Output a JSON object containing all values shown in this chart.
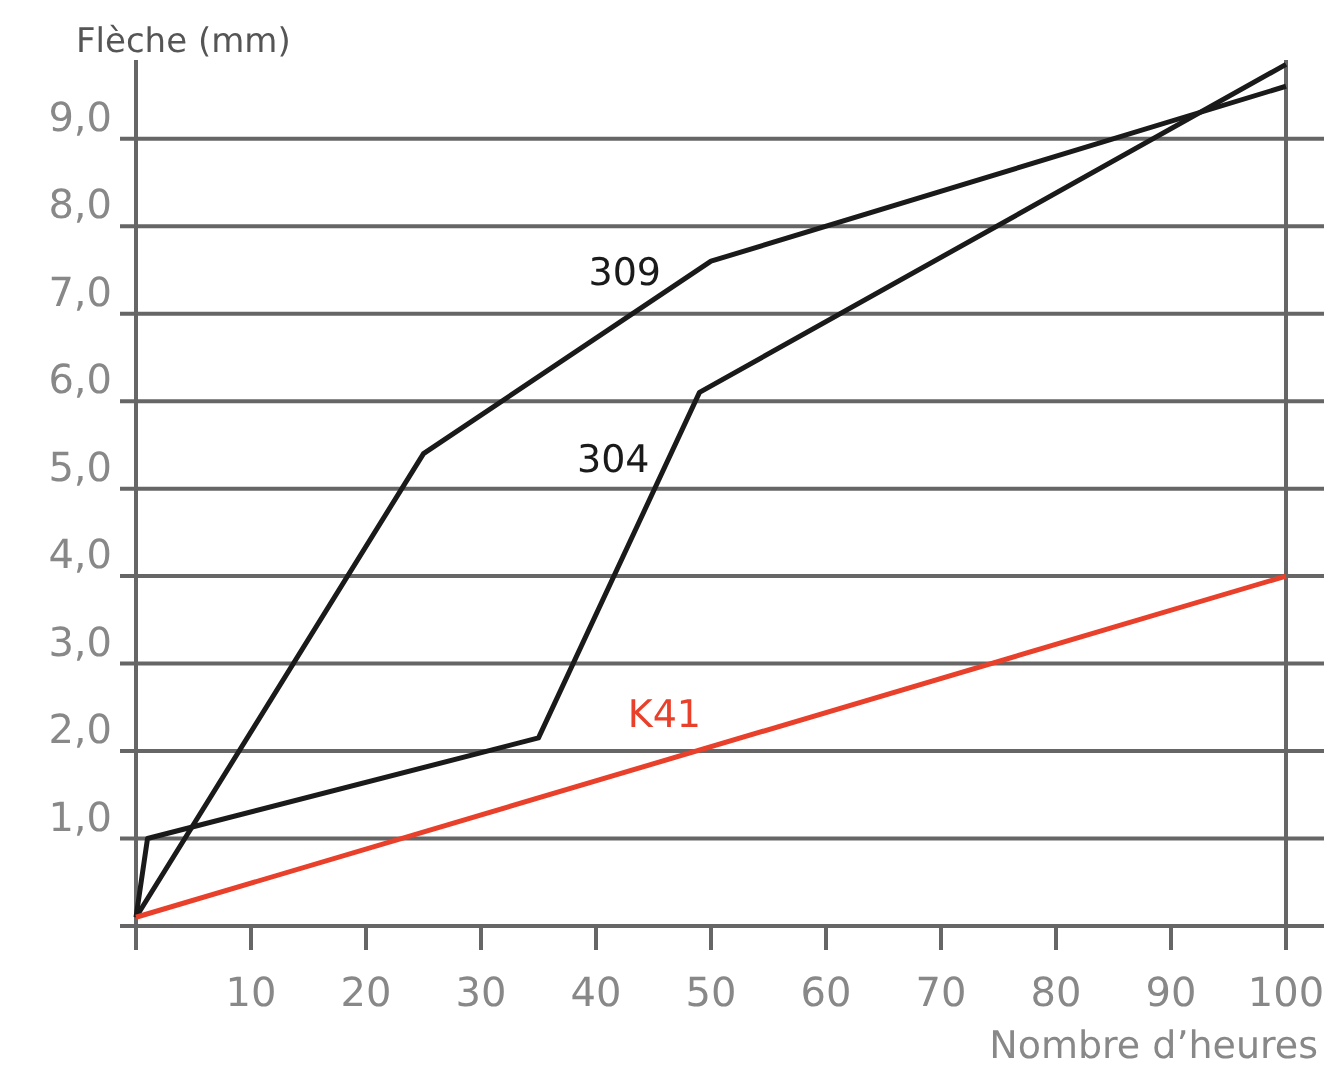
{
  "chart_data": {
    "type": "line",
    "ylabel": "Flèche (mm)",
    "xlabel": "Nombre d’heures",
    "xlim": [
      0,
      100
    ],
    "ylim": [
      0,
      9.9
    ],
    "xticks": [
      {
        "value": 0,
        "label": null
      },
      10,
      20,
      30,
      40,
      50,
      60,
      70,
      80,
      90,
      100
    ],
    "yticks": [
      {
        "value": 1,
        "label": "1,0"
      },
      {
        "value": 2,
        "label": "2,0"
      },
      {
        "value": 3,
        "label": "3,0"
      },
      {
        "value": 4,
        "label": "4,0"
      },
      {
        "value": 5,
        "label": "5,0"
      },
      {
        "value": 6,
        "label": "6,0"
      },
      {
        "value": 7,
        "label": "7,0"
      },
      {
        "value": 8,
        "label": "8,0"
      },
      {
        "value": 9,
        "label": "9,0"
      }
    ],
    "grid": "y",
    "marker": "none",
    "line_style": "solid",
    "series": [
      {
        "name": "309",
        "color": "#1a1a1a",
        "x": [
          0,
          25,
          50,
          100
        ],
        "values": [
          0.1,
          5.4,
          7.6,
          9.6
        ]
      },
      {
        "name": "304",
        "color": "#1a1a1a",
        "x": [
          0,
          1,
          35,
          49,
          100
        ],
        "values": [
          0.1,
          1.0,
          2.15,
          6.1,
          9.85
        ]
      },
      {
        "name": "K41",
        "color": "#e8402a",
        "x": [
          0,
          100
        ],
        "values": [
          0.1,
          4.0
        ]
      }
    ]
  }
}
